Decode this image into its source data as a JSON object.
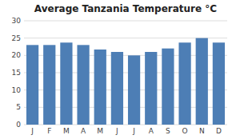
{
  "chart_data": {
    "type": "bar",
    "title": "Average Tanzania Temperature °C",
    "categories": [
      "J",
      "F",
      "M",
      "A",
      "M",
      "J",
      "J",
      "A",
      "S",
      "O",
      "N",
      "D"
    ],
    "values": [
      23,
      23,
      23.7,
      23,
      21.7,
      21,
      20,
      21,
      22,
      23.7,
      25,
      23.7
    ],
    "color": "#4d7eb5",
    "ylim": [
      0,
      30
    ],
    "yticks": [
      0,
      5,
      10,
      15,
      20,
      25,
      30
    ],
    "grid": true
  }
}
